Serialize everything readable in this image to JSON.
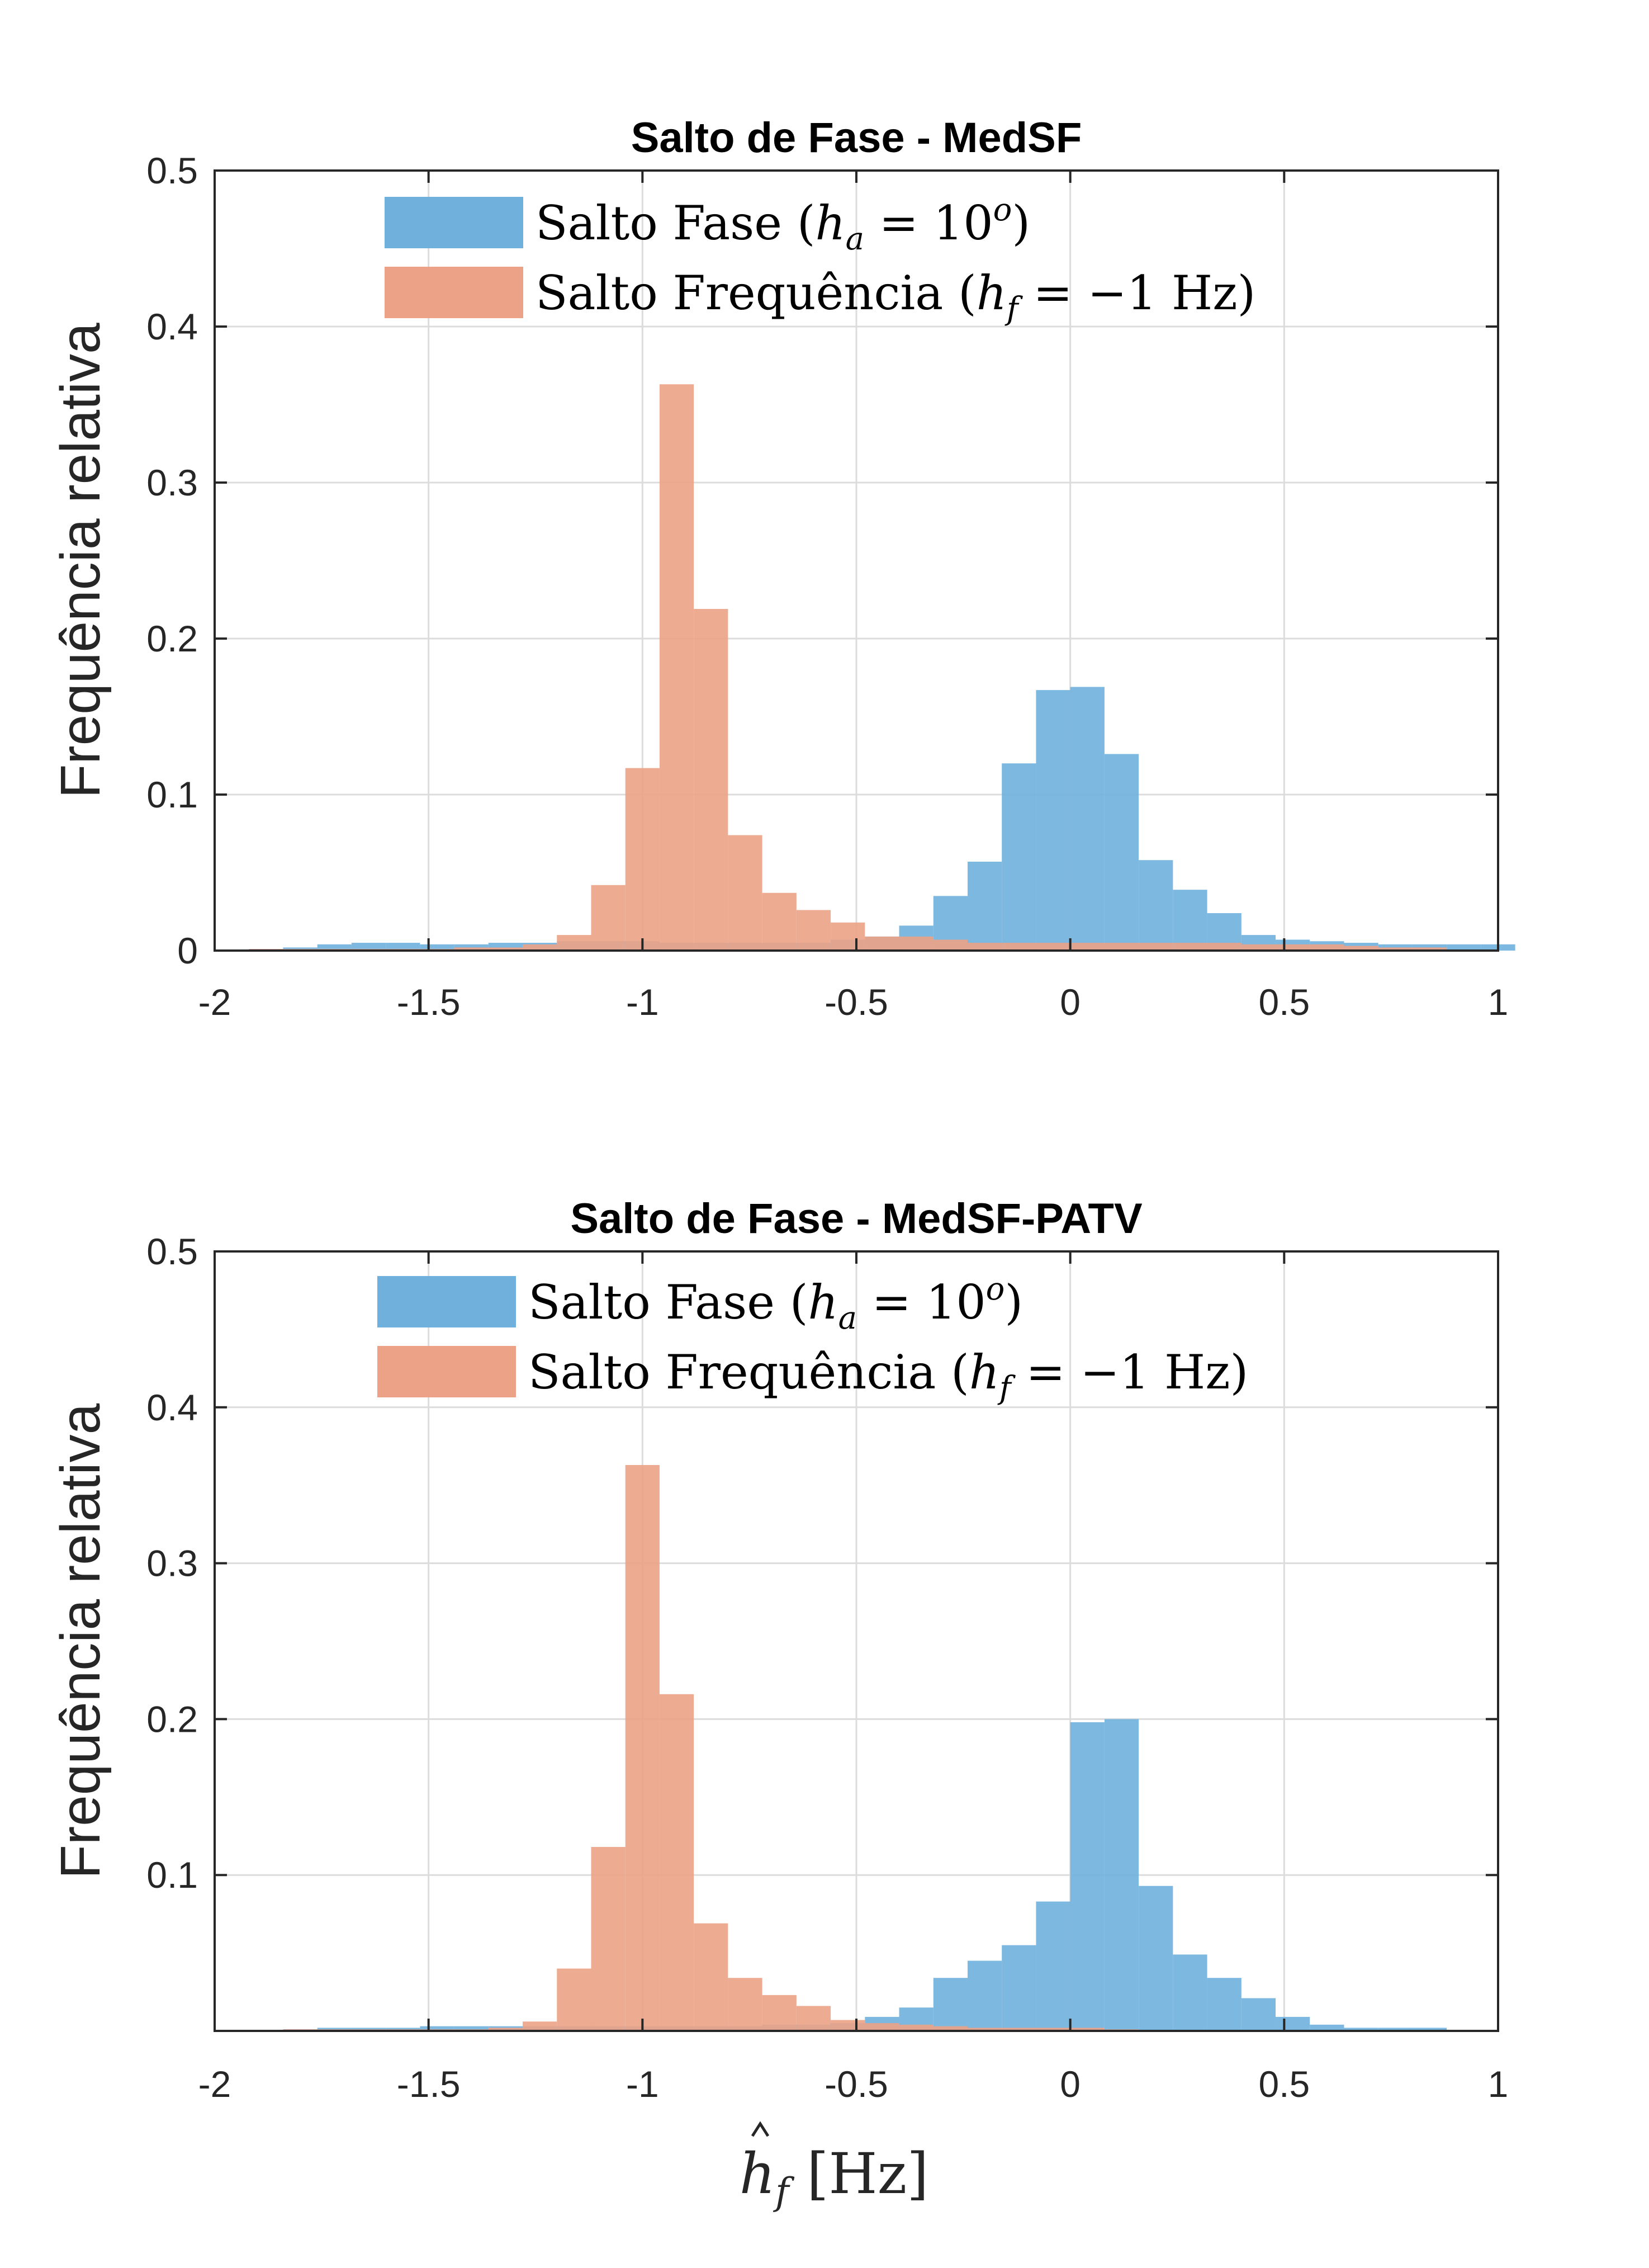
{
  "figure": {
    "colors": {
      "series_1": "#6fb0dd",
      "series_2": "#eba286",
      "overlap": "#a89586",
      "axes": "#262626",
      "grid": "#dcdcdc"
    }
  },
  "chart_data": [
    {
      "type": "bar",
      "subtype": "histogram",
      "title": "Salto de Fase - MedSF",
      "xlabel": "",
      "ylabel": "Frequência relativa",
      "xlim": [
        -2,
        1
      ],
      "ylim": [
        0,
        0.5
      ],
      "xticks": [
        "-2",
        "-1.5",
        "-1",
        "-0.5",
        "0",
        "0.5",
        "1"
      ],
      "yticks": [
        "0",
        "0.1",
        "0.2",
        "0.3",
        "0.4",
        "0.5"
      ],
      "grid": true,
      "legend_position": "top-left",
      "series": [
        {
          "name": "Salto Fase (h_a = 10°)",
          "legend_text": "Salto Fase (",
          "legend_var": "h",
          "legend_sub": "a",
          "legend_mid": " = 10",
          "legend_sup": "o",
          "legend_end": ")",
          "color_key": "series_1",
          "bins": [
            [
              -1.92,
              0.001
            ],
            [
              -1.84,
              0.002
            ],
            [
              -1.76,
              0.004
            ],
            [
              -1.68,
              0.005
            ],
            [
              -1.6,
              0.005
            ],
            [
              -1.52,
              0.004
            ],
            [
              -1.44,
              0.004
            ],
            [
              -1.36,
              0.005
            ],
            [
              -1.28,
              0.005
            ],
            [
              -1.2,
              0.006
            ],
            [
              -1.12,
              0.006
            ],
            [
              -1.04,
              0.006
            ],
            [
              -0.96,
              0.005
            ],
            [
              -0.88,
              0.005
            ],
            [
              -0.8,
              0.005
            ],
            [
              -0.72,
              0.005
            ],
            [
              -0.64,
              0.005
            ],
            [
              -0.56,
              0.007
            ],
            [
              -0.48,
              0.009
            ],
            [
              -0.4,
              0.016
            ],
            [
              -0.32,
              0.035
            ],
            [
              -0.24,
              0.057
            ],
            [
              -0.16,
              0.12
            ],
            [
              -0.08,
              0.167
            ],
            [
              0.0,
              0.169
            ],
            [
              0.08,
              0.126
            ],
            [
              0.16,
              0.058
            ],
            [
              0.24,
              0.039
            ],
            [
              0.32,
              0.024
            ],
            [
              0.4,
              0.01
            ],
            [
              0.48,
              0.007
            ],
            [
              0.56,
              0.006
            ],
            [
              0.64,
              0.005
            ],
            [
              0.72,
              0.004
            ],
            [
              0.8,
              0.004
            ],
            [
              0.88,
              0.004
            ],
            [
              0.96,
              0.004
            ]
          ]
        },
        {
          "name": "Salto Frequência (h_f = −1 Hz)",
          "legend_text": "Salto Frequência (",
          "legend_var": "h",
          "legend_sub": "f",
          "legend_mid": " = −1 Hz",
          "legend_sup": "",
          "legend_end": ")",
          "color_key": "series_2",
          "bins": [
            [
              -1.92,
              0.001
            ],
            [
              -1.84,
              0.001
            ],
            [
              -1.76,
              0.001
            ],
            [
              -1.68,
              0.001
            ],
            [
              -1.6,
              0.001
            ],
            [
              -1.52,
              0.001
            ],
            [
              -1.44,
              0.002
            ],
            [
              -1.36,
              0.002
            ],
            [
              -1.28,
              0.004
            ],
            [
              -1.2,
              0.01
            ],
            [
              -1.12,
              0.042
            ],
            [
              -1.04,
              0.117
            ],
            [
              -0.96,
              0.363
            ],
            [
              -0.88,
              0.219
            ],
            [
              -0.8,
              0.074
            ],
            [
              -0.72,
              0.037
            ],
            [
              -0.64,
              0.026
            ],
            [
              -0.56,
              0.018
            ],
            [
              -0.48,
              0.009
            ],
            [
              -0.4,
              0.009
            ],
            [
              -0.32,
              0.007
            ],
            [
              -0.24,
              0.005
            ],
            [
              -0.16,
              0.005
            ],
            [
              -0.08,
              0.005
            ],
            [
              0.0,
              0.005
            ],
            [
              0.08,
              0.005
            ],
            [
              0.16,
              0.005
            ],
            [
              0.24,
              0.005
            ],
            [
              0.32,
              0.005
            ],
            [
              0.4,
              0.004
            ],
            [
              0.48,
              0.004
            ],
            [
              0.56,
              0.004
            ],
            [
              0.64,
              0.003
            ],
            [
              0.72,
              0.002
            ],
            [
              0.8,
              0.002
            ]
          ]
        }
      ]
    },
    {
      "type": "bar",
      "subtype": "histogram",
      "title": "Salto de Fase - MedSF-PATV",
      "xlabel": "ĥf [Hz]",
      "xlabel_var": "h",
      "xlabel_sub": "f",
      "xlabel_unit": " [Hz]",
      "ylabel": "Frequência relativa",
      "xlim": [
        -2,
        1
      ],
      "ylim": [
        0,
        0.5
      ],
      "xticks": [
        "-2",
        "-1.5",
        "-1",
        "-0.5",
        "0",
        "0.5",
        "1"
      ],
      "yticks": [
        "0.1",
        "0.2",
        "0.3",
        "0.4",
        "0.5"
      ],
      "grid": true,
      "legend_position": "top-left",
      "series": [
        {
          "name": "Salto Fase (h_a = 10°)",
          "legend_text": "Salto Fase (",
          "legend_var": "h",
          "legend_sub": "a",
          "legend_mid": " = 10",
          "legend_sup": "o",
          "legend_end": ")",
          "color_key": "series_1",
          "bins": [
            [
              -1.84,
              0.001
            ],
            [
              -1.76,
              0.002
            ],
            [
              -1.68,
              0.002
            ],
            [
              -1.6,
              0.002
            ],
            [
              -1.52,
              0.003
            ],
            [
              -1.44,
              0.003
            ],
            [
              -1.36,
              0.003
            ],
            [
              -1.28,
              0.003
            ],
            [
              -1.2,
              0.003
            ],
            [
              -1.12,
              0.003
            ],
            [
              -1.04,
              0.003
            ],
            [
              -0.96,
              0.003
            ],
            [
              -0.88,
              0.003
            ],
            [
              -0.8,
              0.003
            ],
            [
              -0.72,
              0.004
            ],
            [
              -0.64,
              0.004
            ],
            [
              -0.56,
              0.005
            ],
            [
              -0.48,
              0.009
            ],
            [
              -0.4,
              0.015
            ],
            [
              -0.32,
              0.034
            ],
            [
              -0.24,
              0.045
            ],
            [
              -0.16,
              0.055
            ],
            [
              -0.08,
              0.083
            ],
            [
              0.0,
              0.198
            ],
            [
              0.08,
              0.2
            ],
            [
              0.16,
              0.093
            ],
            [
              0.24,
              0.049
            ],
            [
              0.32,
              0.034
            ],
            [
              0.4,
              0.021
            ],
            [
              0.48,
              0.009
            ],
            [
              0.56,
              0.004
            ],
            [
              0.64,
              0.002
            ],
            [
              0.72,
              0.002
            ],
            [
              0.8,
              0.002
            ]
          ]
        },
        {
          "name": "Salto Frequência (h_f = −1 Hz)",
          "legend_text": "Salto Frequência (",
          "legend_var": "h",
          "legend_sub": "f",
          "legend_mid": " = −1 Hz",
          "legend_sup": "",
          "legend_end": ")",
          "color_key": "series_2",
          "bins": [
            [
              -1.84,
              0.001
            ],
            [
              -1.76,
              0.001
            ],
            [
              -1.68,
              0.001
            ],
            [
              -1.6,
              0.001
            ],
            [
              -1.52,
              0.001
            ],
            [
              -1.44,
              0.001
            ],
            [
              -1.36,
              0.002
            ],
            [
              -1.28,
              0.006
            ],
            [
              -1.2,
              0.04
            ],
            [
              -1.12,
              0.118
            ],
            [
              -1.04,
              0.363
            ],
            [
              -0.96,
              0.216
            ],
            [
              -0.88,
              0.069
            ],
            [
              -0.8,
              0.034
            ],
            [
              -0.72,
              0.023
            ],
            [
              -0.64,
              0.016
            ],
            [
              -0.56,
              0.007
            ],
            [
              -0.48,
              0.005
            ],
            [
              -0.4,
              0.004
            ],
            [
              -0.32,
              0.003
            ],
            [
              -0.24,
              0.002
            ],
            [
              -0.16,
              0.002
            ],
            [
              -0.08,
              0.002
            ],
            [
              0.0,
              0.002
            ],
            [
              0.08,
              0.001
            ]
          ]
        }
      ]
    }
  ]
}
